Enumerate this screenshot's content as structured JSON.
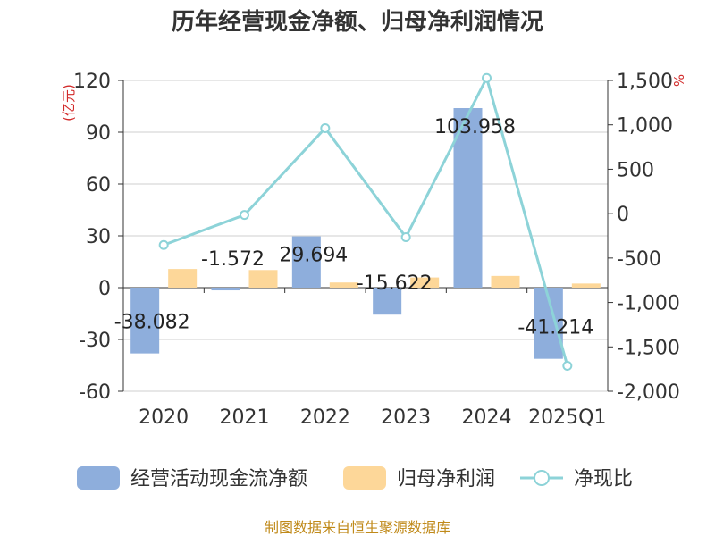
{
  "chart_data": {
    "type": "bar",
    "title": "历年经营现金净额、归母净利润情况",
    "categories": [
      "2020",
      "2021",
      "2022",
      "2023",
      "2024",
      "2025Q1"
    ],
    "series": [
      {
        "name": "经营活动现金流净额",
        "type": "bar",
        "axis": "left",
        "color": "#8eaedc",
        "values": [
          -38.082,
          -1.572,
          29.694,
          -15.622,
          103.958,
          -41.214
        ]
      },
      {
        "name": "归母净利润",
        "type": "bar",
        "axis": "left",
        "color": "#fdd799",
        "values": [
          10.8,
          10.2,
          3.0,
          5.9,
          6.8,
          2.4
        ]
      },
      {
        "name": "净现比",
        "type": "line",
        "axis": "right",
        "color": "#8dd3d8",
        "values": [
          -353,
          -15,
          962,
          -265,
          1528,
          -1713
        ]
      }
    ],
    "data_labels": [
      "-38.082",
      "-1.572",
      "29.694",
      "-15.622",
      "103.958",
      "-41.214"
    ],
    "y_left": {
      "unit": "(亿元)",
      "ylim": [
        -60,
        120
      ],
      "ticks": [
        120,
        90,
        60,
        30,
        0,
        -30,
        -60
      ],
      "tick_labels": [
        "120",
        "90",
        "60",
        "30",
        "0",
        "-30",
        "-60"
      ]
    },
    "y_right": {
      "unit": "%",
      "ylim": [
        -2000,
        1500
      ],
      "ticks": [
        1500,
        1000,
        500,
        0,
        -500,
        -1000,
        -1500,
        -2000
      ],
      "tick_labels": [
        "1,500",
        "1,000",
        "500",
        "0",
        "-500",
        "-1,000",
        "-1,500",
        "-2,000"
      ]
    },
    "legend": [
      "经营活动现金流净额",
      "归母净利润",
      "净现比"
    ],
    "grid": true,
    "legend_position": "bottom"
  },
  "source": "制图数据来自恒生聚源数据库"
}
